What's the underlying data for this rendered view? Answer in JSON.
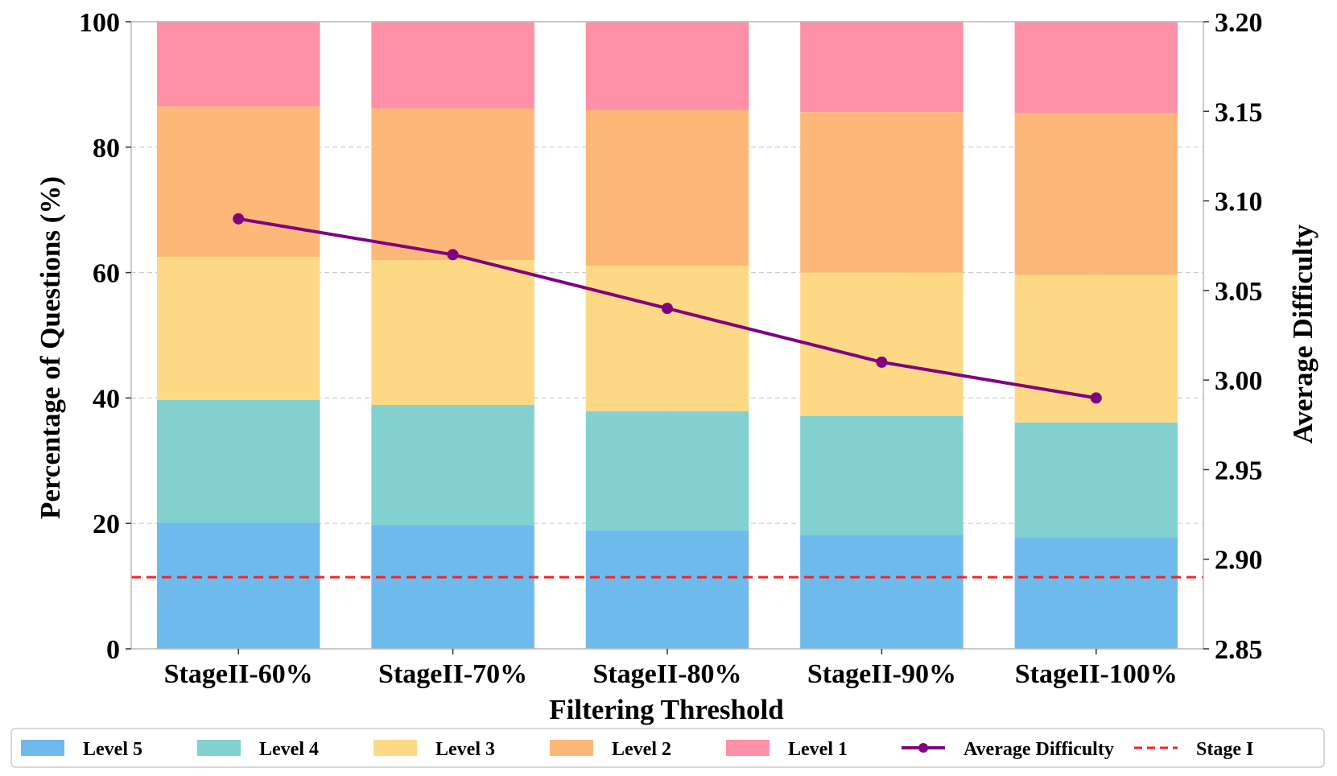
{
  "chart_data": {
    "type": "bar",
    "stacked": true,
    "categories": [
      "StageII-60%",
      "StageII-70%",
      "StageII-80%",
      "StageII-90%",
      "StageII-100%"
    ],
    "series": [
      {
        "name": "Level 5",
        "color": "#6fbaed",
        "values": [
          20.1,
          19.7,
          18.9,
          18.2,
          17.7
        ]
      },
      {
        "name": "Level 4",
        "color": "#82d1d0",
        "values": [
          19.6,
          19.2,
          19.0,
          18.9,
          18.4
        ]
      },
      {
        "name": "Level 3",
        "color": "#fdd986",
        "values": [
          22.8,
          23.1,
          23.2,
          22.9,
          23.5
        ]
      },
      {
        "name": "Level 2",
        "color": "#fdb879",
        "values": [
          24.0,
          24.2,
          24.8,
          25.6,
          25.8
        ]
      },
      {
        "name": "Level 1",
        "color": "#fe90a8",
        "values": [
          13.5,
          13.8,
          14.1,
          14.4,
          14.6
        ]
      }
    ],
    "line_series": {
      "name": "Average Difficulty",
      "color": "#800080",
      "axis": "right",
      "values": [
        3.09,
        3.07,
        3.04,
        3.01,
        2.99
      ]
    },
    "reference_line": {
      "name": "Stage I",
      "color": "#ff2020",
      "value": 2.89,
      "axis": "right",
      "style": "dashed"
    },
    "xlabel": "Filtering Threshold",
    "ylabel": "Percentage of Questions (%)",
    "ylabel_right": "Average Difficulty",
    "ylim": [
      0,
      100
    ],
    "ylim_right": [
      2.85,
      3.2
    ],
    "yticks": [
      "0",
      "20",
      "40",
      "60",
      "80",
      "100"
    ],
    "yticks_right": [
      "2.85",
      "2.90",
      "2.95",
      "3.00",
      "3.05",
      "3.10",
      "3.15",
      "3.20"
    ],
    "grid": true,
    "legend_position": "bottom",
    "legend": [
      "Level 5",
      "Level 4",
      "Level 3",
      "Level 2",
      "Level 1",
      "Average Difficulty",
      "Stage I"
    ]
  }
}
